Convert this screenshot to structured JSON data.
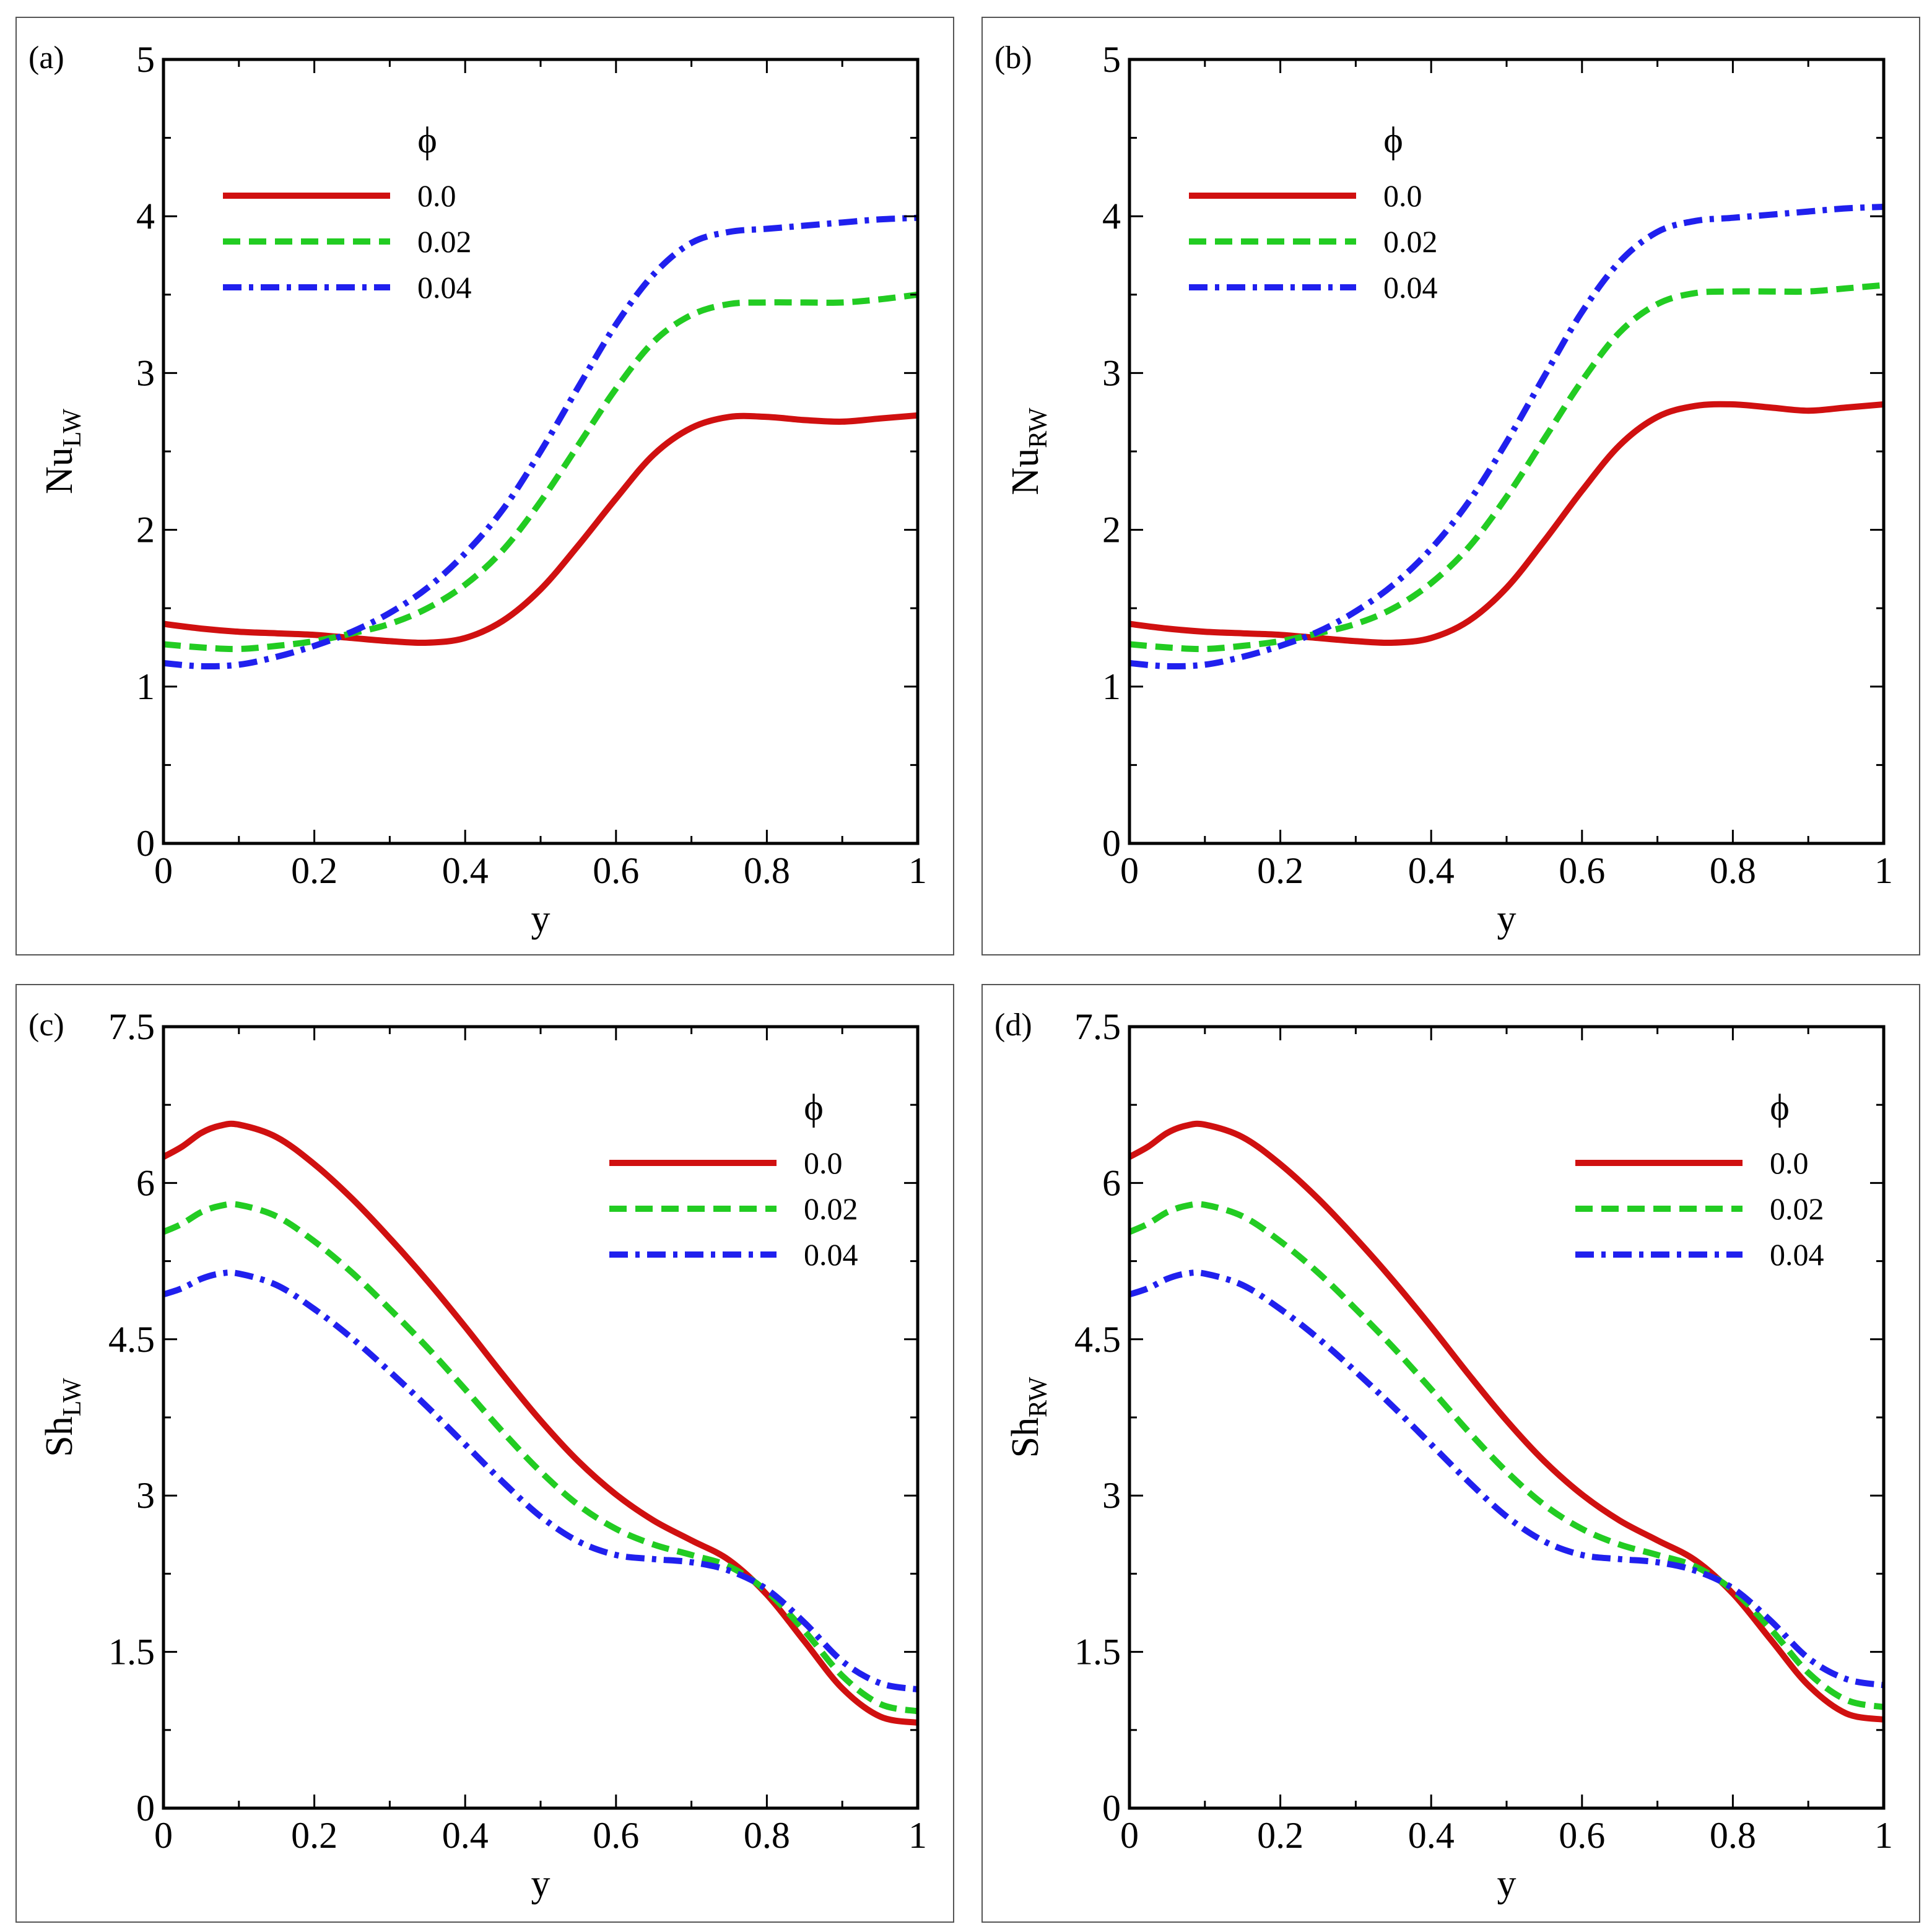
{
  "figure": {
    "colors": {
      "0.0": "#d01010",
      "0.02": "#22cc22",
      "0.04": "#2020ee"
    }
  },
  "chart_data": [
    {
      "type": "line",
      "panel_label": "(a)",
      "xlabel": "y",
      "ylabel_main": "Nu",
      "ylabel_sub": "LW",
      "xlim": [
        0,
        1
      ],
      "ylim": [
        0,
        5
      ],
      "xticks": [
        {
          "value": 0,
          "label": "0"
        },
        {
          "value": 0.2,
          "label": "0.2"
        },
        {
          "value": 0.4,
          "label": "0.4"
        },
        {
          "value": 0.6,
          "label": "0.6"
        },
        {
          "value": 0.8,
          "label": "0.8"
        },
        {
          "value": 1,
          "label": "1"
        }
      ],
      "yticks": [
        {
          "value": 0,
          "label": "0"
        },
        {
          "value": 1,
          "label": "1"
        },
        {
          "value": 2,
          "label": "2"
        },
        {
          "value": 3,
          "label": "3"
        },
        {
          "value": 4,
          "label": "4"
        },
        {
          "value": 5,
          "label": "5"
        }
      ],
      "legend": {
        "title": "ϕ",
        "position": "upper-left"
      },
      "x": [
        0,
        0.05,
        0.1,
        0.15,
        0.2,
        0.25,
        0.3,
        0.35,
        0.4,
        0.45,
        0.5,
        0.55,
        0.6,
        0.65,
        0.7,
        0.75,
        0.8,
        0.85,
        0.9,
        0.95,
        1.0
      ],
      "series": [
        {
          "name": "0.0",
          "style": "solid",
          "values": [
            1.4,
            1.37,
            1.35,
            1.34,
            1.33,
            1.31,
            1.29,
            1.28,
            1.31,
            1.42,
            1.62,
            1.9,
            2.2,
            2.48,
            2.65,
            2.72,
            2.72,
            2.7,
            2.69,
            2.71,
            2.73
          ]
        },
        {
          "name": "0.02",
          "style": "dashed",
          "values": [
            1.27,
            1.25,
            1.24,
            1.26,
            1.29,
            1.34,
            1.4,
            1.5,
            1.65,
            1.87,
            2.18,
            2.54,
            2.9,
            3.2,
            3.37,
            3.44,
            3.45,
            3.45,
            3.45,
            3.47,
            3.5
          ]
        },
        {
          "name": "0.04",
          "style": "dashdot",
          "values": [
            1.15,
            1.13,
            1.14,
            1.19,
            1.26,
            1.35,
            1.47,
            1.63,
            1.85,
            2.13,
            2.5,
            2.91,
            3.31,
            3.63,
            3.83,
            3.9,
            3.92,
            3.94,
            3.96,
            3.98,
            3.99
          ]
        }
      ]
    },
    {
      "type": "line",
      "panel_label": "(b)",
      "xlabel": "y",
      "ylabel_main": "Nu",
      "ylabel_sub": "RW",
      "xlim": [
        0,
        1
      ],
      "ylim": [
        0,
        5
      ],
      "xticks": [
        {
          "value": 0,
          "label": "0"
        },
        {
          "value": 0.2,
          "label": "0.2"
        },
        {
          "value": 0.4,
          "label": "0.4"
        },
        {
          "value": 0.6,
          "label": "0.6"
        },
        {
          "value": 0.8,
          "label": "0.8"
        },
        {
          "value": 1,
          "label": "1"
        }
      ],
      "yticks": [
        {
          "value": 0,
          "label": "0"
        },
        {
          "value": 1,
          "label": "1"
        },
        {
          "value": 2,
          "label": "2"
        },
        {
          "value": 3,
          "label": "3"
        },
        {
          "value": 4,
          "label": "4"
        },
        {
          "value": 5,
          "label": "5"
        }
      ],
      "legend": {
        "title": "ϕ",
        "position": "upper-left"
      },
      "x": [
        0,
        0.05,
        0.1,
        0.15,
        0.2,
        0.25,
        0.3,
        0.35,
        0.4,
        0.45,
        0.5,
        0.55,
        0.6,
        0.65,
        0.7,
        0.75,
        0.8,
        0.85,
        0.9,
        0.95,
        1.0
      ],
      "series": [
        {
          "name": "0.0",
          "style": "solid",
          "values": [
            1.4,
            1.37,
            1.35,
            1.34,
            1.33,
            1.31,
            1.29,
            1.28,
            1.31,
            1.42,
            1.63,
            1.93,
            2.25,
            2.54,
            2.72,
            2.79,
            2.8,
            2.78,
            2.76,
            2.78,
            2.8
          ]
        },
        {
          "name": "0.02",
          "style": "dashed",
          "values": [
            1.27,
            1.25,
            1.24,
            1.26,
            1.29,
            1.34,
            1.4,
            1.5,
            1.66,
            1.89,
            2.21,
            2.58,
            2.95,
            3.26,
            3.44,
            3.51,
            3.52,
            3.52,
            3.52,
            3.54,
            3.56
          ]
        },
        {
          "name": "0.04",
          "style": "dashdot",
          "values": [
            1.15,
            1.13,
            1.14,
            1.19,
            1.26,
            1.35,
            1.48,
            1.65,
            1.88,
            2.18,
            2.56,
            2.98,
            3.39,
            3.71,
            3.9,
            3.97,
            3.99,
            4.01,
            4.03,
            4.05,
            4.06
          ]
        }
      ]
    },
    {
      "type": "line",
      "panel_label": "(c)",
      "xlabel": "y",
      "ylabel_main": "Sh",
      "ylabel_sub": "LW",
      "xlim": [
        0,
        1
      ],
      "ylim": [
        0,
        7.5
      ],
      "xticks": [
        {
          "value": 0,
          "label": "0"
        },
        {
          "value": 0.2,
          "label": "0.2"
        },
        {
          "value": 0.4,
          "label": "0.4"
        },
        {
          "value": 0.6,
          "label": "0.6"
        },
        {
          "value": 0.8,
          "label": "0.8"
        },
        {
          "value": 1,
          "label": "1"
        }
      ],
      "yticks": [
        {
          "value": 0,
          "label": "0"
        },
        {
          "value": 1.5,
          "label": "1.5"
        },
        {
          "value": 3,
          "label": "3"
        },
        {
          "value": 4.5,
          "label": "4.5"
        },
        {
          "value": 6,
          "label": "6"
        },
        {
          "value": 7.5,
          "label": "7.5"
        }
      ],
      "legend": {
        "title": "ϕ",
        "position": "upper-right"
      },
      "x": [
        0,
        0.025,
        0.05,
        0.075,
        0.1,
        0.15,
        0.2,
        0.25,
        0.3,
        0.35,
        0.4,
        0.45,
        0.5,
        0.55,
        0.6,
        0.65,
        0.7,
        0.75,
        0.8,
        0.85,
        0.9,
        0.95,
        1.0
      ],
      "series": [
        {
          "name": "0.0",
          "style": "solid",
          "values": [
            6.25,
            6.35,
            6.48,
            6.55,
            6.56,
            6.44,
            6.18,
            5.85,
            5.47,
            5.06,
            4.62,
            4.16,
            3.72,
            3.33,
            3.01,
            2.76,
            2.57,
            2.38,
            2.05,
            1.6,
            1.15,
            0.88,
            0.82
          ]
        },
        {
          "name": "0.02",
          "style": "dashed",
          "values": [
            5.53,
            5.61,
            5.72,
            5.78,
            5.79,
            5.68,
            5.44,
            5.14,
            4.79,
            4.42,
            4.02,
            3.61,
            3.23,
            2.91,
            2.68,
            2.53,
            2.43,
            2.32,
            2.08,
            1.7,
            1.27,
            1.0,
            0.93
          ]
        },
        {
          "name": "0.04",
          "style": "dashdot",
          "values": [
            4.93,
            4.99,
            5.08,
            5.13,
            5.13,
            5.02,
            4.79,
            4.51,
            4.19,
            3.85,
            3.49,
            3.13,
            2.8,
            2.56,
            2.43,
            2.39,
            2.36,
            2.28,
            2.1,
            1.78,
            1.41,
            1.2,
            1.14
          ]
        }
      ]
    },
    {
      "type": "line",
      "panel_label": "(d)",
      "xlabel": "y",
      "ylabel_main": "Sh",
      "ylabel_sub": "RW",
      "xlim": [
        0,
        1
      ],
      "ylim": [
        0,
        7.5
      ],
      "xticks": [
        {
          "value": 0,
          "label": "0"
        },
        {
          "value": 0.2,
          "label": "0.2"
        },
        {
          "value": 0.4,
          "label": "0.4"
        },
        {
          "value": 0.6,
          "label": "0.6"
        },
        {
          "value": 0.8,
          "label": "0.8"
        },
        {
          "value": 1,
          "label": "1"
        }
      ],
      "yticks": [
        {
          "value": 0,
          "label": "0"
        },
        {
          "value": 1.5,
          "label": "1.5"
        },
        {
          "value": 3,
          "label": "3"
        },
        {
          "value": 4.5,
          "label": "4.5"
        },
        {
          "value": 6,
          "label": "6"
        },
        {
          "value": 7.5,
          "label": "7.5"
        }
      ],
      "legend": {
        "title": "ϕ",
        "position": "upper-right"
      },
      "x": [
        0,
        0.025,
        0.05,
        0.075,
        0.1,
        0.15,
        0.2,
        0.25,
        0.3,
        0.35,
        0.4,
        0.45,
        0.5,
        0.55,
        0.6,
        0.65,
        0.7,
        0.75,
        0.8,
        0.85,
        0.9,
        0.95,
        1.0
      ],
      "series": [
        {
          "name": "0.0",
          "style": "solid",
          "values": [
            6.25,
            6.35,
            6.48,
            6.55,
            6.56,
            6.44,
            6.18,
            5.85,
            5.47,
            5.06,
            4.62,
            4.16,
            3.72,
            3.33,
            3.01,
            2.76,
            2.57,
            2.38,
            2.06,
            1.62,
            1.18,
            0.91,
            0.85
          ]
        },
        {
          "name": "0.02",
          "style": "dashed",
          "values": [
            5.53,
            5.61,
            5.72,
            5.78,
            5.79,
            5.68,
            5.44,
            5.14,
            4.79,
            4.42,
            4.02,
            3.61,
            3.23,
            2.91,
            2.68,
            2.53,
            2.43,
            2.32,
            2.09,
            1.72,
            1.3,
            1.04,
            0.97
          ]
        },
        {
          "name": "0.04",
          "style": "dashdot",
          "values": [
            4.93,
            4.99,
            5.08,
            5.13,
            5.13,
            5.02,
            4.79,
            4.51,
            4.19,
            3.85,
            3.49,
            3.13,
            2.8,
            2.56,
            2.43,
            2.39,
            2.36,
            2.28,
            2.11,
            1.8,
            1.44,
            1.24,
            1.18
          ]
        }
      ]
    }
  ]
}
